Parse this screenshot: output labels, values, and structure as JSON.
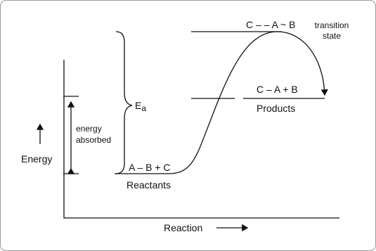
{
  "diagram": {
    "labels": {
      "transition_complex": "C – – A ~ B",
      "transition_state": [
        "transition",
        "state"
      ],
      "products_formula": "C – A + B",
      "products": "Products",
      "activation_energy": "E",
      "activation_energy_subscript": "a",
      "energy_absorbed": [
        "energy",
        "absorbed"
      ],
      "y_axis": "Energy",
      "reactants_formula": "A – B + C",
      "reactants": "Reactants",
      "x_axis": "Reaction"
    }
  }
}
